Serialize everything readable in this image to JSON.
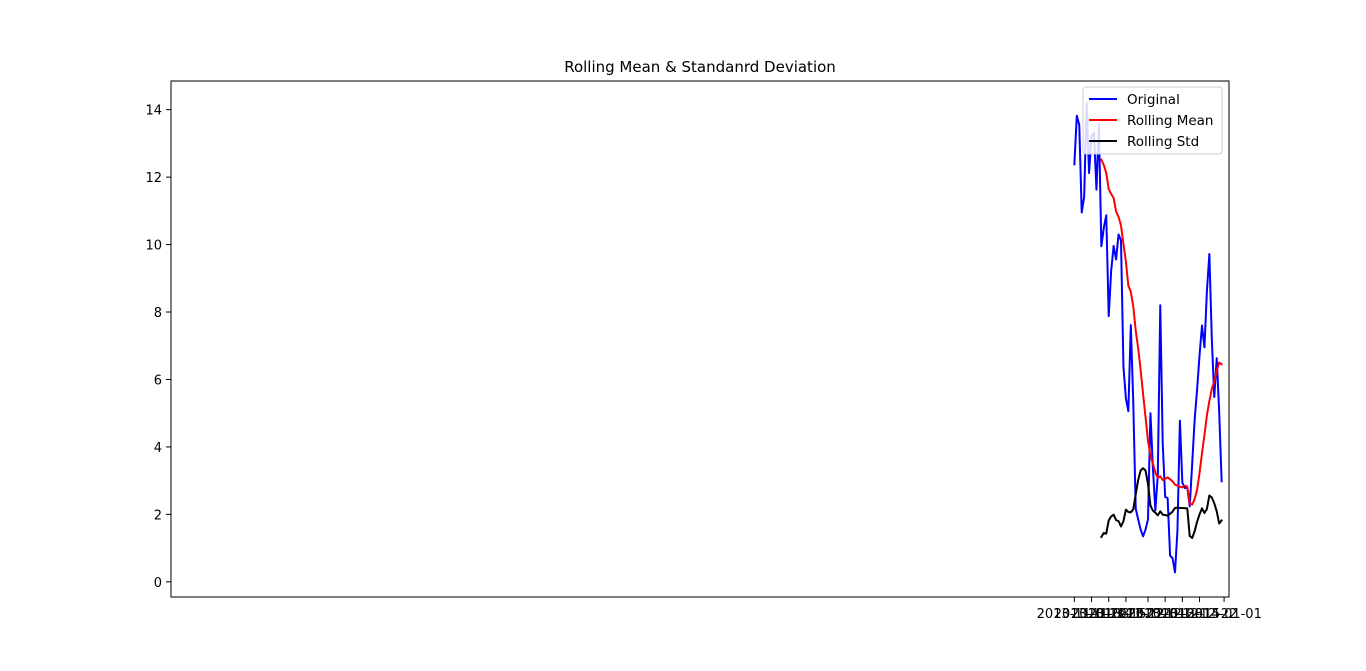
{
  "chart_data": {
    "type": "line",
    "title": "Rolling Mean & Standanrd Deviation",
    "xlabel": "",
    "ylabel": "",
    "x_start": "2013-11-01",
    "x_end": "2013-12-31",
    "xlim": [
      "2012-10-29",
      "2014-01-03"
    ],
    "ylim": [
      -0.45,
      14.85
    ],
    "x_ticks": [
      {
        "date": "2013-11-01",
        "label": "2013-11-01"
      },
      {
        "date": "2013-11-08",
        "label": "2013-11-08"
      },
      {
        "date": "2013-11-15",
        "label": "2013-11-15"
      },
      {
        "date": "2013-11-22",
        "label": "2013-11-22"
      },
      {
        "date": "2013-12-01",
        "label": "2013-12-01"
      },
      {
        "date": "2013-12-08",
        "label": "2013-12-08"
      },
      {
        "date": "2013-12-15",
        "label": "2013-12-15"
      },
      {
        "date": "2013-12-22",
        "label": "2013-12-22"
      },
      {
        "date": "2014-01-01",
        "label": "2014-01-01"
      }
    ],
    "y_ticks": [
      0,
      2,
      4,
      6,
      8,
      10,
      12,
      14
    ],
    "grid": false,
    "legend_position": "top-right",
    "series": [
      {
        "name": "Original",
        "color": "#0000ff",
        "values": [
          12.38,
          13.82,
          13.55,
          10.95,
          11.42,
          14.2,
          12.12,
          13.22,
          13.32,
          11.63,
          13.58,
          9.95,
          10.5,
          10.87,
          7.88,
          9.22,
          9.96,
          9.56,
          10.3,
          10.13,
          6.38,
          5.44,
          5.06,
          7.61,
          5.33,
          2.17,
          1.85,
          1.55,
          1.35,
          1.55,
          1.85,
          5.0,
          3.38,
          2.12,
          3.18,
          8.2,
          4.1,
          2.52,
          2.48,
          0.78,
          0.7,
          0.28,
          1.52,
          4.78,
          2.94,
          2.78,
          2.8,
          2.24,
          3.5,
          4.8,
          5.7,
          6.72,
          7.6,
          6.95,
          8.62,
          9.72,
          7.2,
          5.48,
          6.63,
          5.05,
          2.98
        ]
      },
      {
        "name": "Rolling Mean",
        "color": "#ff0000",
        "values": [
          null,
          null,
          null,
          null,
          null,
          null,
          null,
          null,
          null,
          null,
          null,
          12.52,
          12.36,
          12.12,
          11.65,
          11.5,
          11.38,
          10.98,
          10.82,
          10.57,
          10.02,
          9.5,
          8.78,
          8.6,
          8.17,
          7.45,
          6.93,
          6.28,
          5.57,
          4.88,
          4.18,
          3.75,
          3.5,
          3.24,
          3.08,
          3.13,
          3.02,
          3.05,
          3.1,
          3.04,
          2.98,
          2.88,
          2.85,
          2.82,
          2.8,
          2.85,
          2.82,
          2.32,
          2.29,
          2.45,
          2.73,
          3.23,
          3.81,
          4.36,
          4.94,
          5.36,
          5.72,
          5.95,
          6.25,
          6.5,
          6.45
        ]
      },
      {
        "name": "Rolling Std",
        "color": "#000000",
        "values": [
          null,
          null,
          null,
          null,
          null,
          null,
          null,
          null,
          null,
          null,
          null,
          1.33,
          1.45,
          1.43,
          1.82,
          1.94,
          1.99,
          1.83,
          1.8,
          1.64,
          1.8,
          2.14,
          2.07,
          2.06,
          2.15,
          2.59,
          3.02,
          3.3,
          3.37,
          3.3,
          2.9,
          2.26,
          2.11,
          2.05,
          1.97,
          2.09,
          1.99,
          1.98,
          1.96,
          2.02,
          2.08,
          2.19,
          2.2,
          2.19,
          2.19,
          2.18,
          2.18,
          1.36,
          1.3,
          1.5,
          1.78,
          2.0,
          2.18,
          2.04,
          2.16,
          2.56,
          2.5,
          2.33,
          2.09,
          1.73,
          1.82
        ]
      }
    ]
  }
}
